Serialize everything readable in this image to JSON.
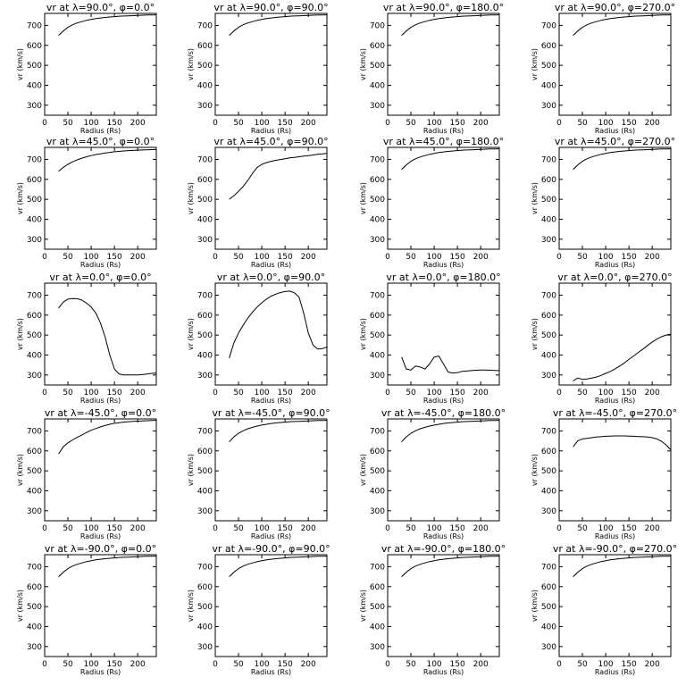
{
  "figure": {
    "x_axis_label": "Radius (Rs)",
    "y_axis_label": "vr (km/s)",
    "xlim": [
      0,
      240
    ],
    "ylim": [
      250,
      760
    ],
    "xticks": [
      0,
      50,
      100,
      150,
      200
    ],
    "yticks": [
      300,
      400,
      500,
      600,
      700
    ],
    "colors": {
      "line": "#000000",
      "background": "#ffffff"
    }
  },
  "chart_data": [
    {
      "type": "line",
      "title": "vr at λ=90.0°, φ=0.0°",
      "x": [
        30,
        40,
        50,
        60,
        70,
        80,
        90,
        100,
        110,
        120,
        130,
        140,
        150,
        160,
        170,
        180,
        190,
        200,
        210,
        220,
        230,
        240
      ],
      "y": [
        650,
        672,
        690,
        703,
        712,
        719,
        725,
        730,
        734,
        737,
        740,
        742,
        744,
        746,
        747,
        748,
        749,
        750,
        751,
        752,
        752,
        753
      ]
    },
    {
      "type": "line",
      "title": "vr at λ=90.0°, φ=90.0°",
      "x": [
        30,
        40,
        50,
        60,
        70,
        80,
        90,
        100,
        110,
        120,
        130,
        140,
        150,
        160,
        170,
        180,
        190,
        200,
        210,
        220,
        230,
        240
      ],
      "y": [
        650,
        672,
        690,
        703,
        712,
        719,
        725,
        730,
        734,
        737,
        740,
        742,
        744,
        746,
        747,
        748,
        749,
        750,
        751,
        752,
        752,
        753
      ]
    },
    {
      "type": "line",
      "title": "vr at λ=90.0°, φ=180.0°",
      "x": [
        30,
        40,
        50,
        60,
        70,
        80,
        90,
        100,
        110,
        120,
        130,
        140,
        150,
        160,
        170,
        180,
        190,
        200,
        210,
        220,
        230,
        240
      ],
      "y": [
        650,
        672,
        690,
        703,
        712,
        719,
        725,
        730,
        734,
        737,
        740,
        742,
        744,
        746,
        747,
        748,
        749,
        750,
        751,
        752,
        752,
        753
      ]
    },
    {
      "type": "line",
      "title": "vr at λ=90.0°, φ=270.0°",
      "x": [
        30,
        40,
        50,
        60,
        70,
        80,
        90,
        100,
        110,
        120,
        130,
        140,
        150,
        160,
        170,
        180,
        190,
        200,
        210,
        220,
        230,
        240
      ],
      "y": [
        650,
        672,
        690,
        703,
        712,
        719,
        725,
        730,
        734,
        737,
        740,
        742,
        744,
        746,
        747,
        748,
        749,
        750,
        751,
        752,
        752,
        753
      ]
    },
    {
      "type": "line",
      "title": "vr at λ=45.0°, φ=0.0°",
      "x": [
        30,
        40,
        50,
        60,
        70,
        80,
        90,
        100,
        110,
        120,
        130,
        140,
        150,
        160,
        170,
        180,
        190,
        200,
        210,
        220,
        230,
        240
      ],
      "y": [
        640,
        660,
        675,
        688,
        698,
        706,
        713,
        719,
        724,
        728,
        732,
        735,
        738,
        740,
        742,
        744,
        745,
        746,
        747,
        748,
        749,
        750
      ]
    },
    {
      "type": "line",
      "title": "vr at λ=45.0°, φ=90.0°",
      "x": [
        30,
        40,
        50,
        60,
        70,
        80,
        90,
        100,
        110,
        120,
        130,
        140,
        150,
        160,
        170,
        180,
        190,
        200,
        210,
        220,
        230,
        240
      ],
      "y": [
        500,
        518,
        540,
        565,
        595,
        630,
        660,
        675,
        684,
        690,
        695,
        699,
        703,
        707,
        710,
        713,
        716,
        719,
        722,
        725,
        728,
        730
      ]
    },
    {
      "type": "line",
      "title": "vr at λ=45.0°, φ=180.0°",
      "x": [
        30,
        40,
        50,
        60,
        70,
        80,
        90,
        100,
        110,
        120,
        130,
        140,
        150,
        160,
        170,
        180,
        190,
        200,
        210,
        220,
        230,
        240
      ],
      "y": [
        650,
        672,
        690,
        703,
        712,
        719,
        725,
        730,
        734,
        737,
        740,
        742,
        744,
        746,
        747,
        748,
        749,
        750,
        751,
        752,
        752,
        753
      ]
    },
    {
      "type": "line",
      "title": "vr at λ=45.0°, φ=270.0°",
      "x": [
        30,
        40,
        50,
        60,
        70,
        80,
        90,
        100,
        110,
        120,
        130,
        140,
        150,
        160,
        170,
        180,
        190,
        200,
        210,
        220,
        230,
        240
      ],
      "y": [
        650,
        672,
        690,
        703,
        712,
        719,
        725,
        730,
        734,
        737,
        740,
        742,
        744,
        746,
        747,
        748,
        749,
        750,
        751,
        752,
        752,
        753
      ]
    },
    {
      "type": "line",
      "title": "vr at λ=0.0°, φ=0.0°",
      "x": [
        30,
        40,
        50,
        60,
        70,
        80,
        90,
        100,
        110,
        120,
        130,
        140,
        150,
        160,
        170,
        180,
        190,
        200,
        210,
        220,
        230,
        240
      ],
      "y": [
        635,
        665,
        680,
        683,
        682,
        675,
        660,
        640,
        610,
        560,
        490,
        400,
        330,
        305,
        300,
        300,
        300,
        300,
        302,
        305,
        308,
        310
      ]
    },
    {
      "type": "line",
      "title": "vr at λ=0.0°, φ=90.0°",
      "x": [
        30,
        40,
        50,
        60,
        70,
        80,
        90,
        100,
        110,
        120,
        130,
        140,
        150,
        160,
        170,
        180,
        190,
        200,
        210,
        220,
        230,
        240
      ],
      "y": [
        385,
        460,
        510,
        550,
        585,
        615,
        640,
        662,
        680,
        695,
        705,
        713,
        718,
        720,
        712,
        690,
        610,
        510,
        450,
        430,
        432,
        440
      ]
    },
    {
      "type": "line",
      "title": "vr at λ=0.0°, φ=180.0°",
      "x": [
        30,
        40,
        50,
        60,
        70,
        80,
        90,
        100,
        110,
        120,
        130,
        140,
        150,
        160,
        170,
        180,
        190,
        200,
        210,
        220,
        230,
        240
      ],
      "y": [
        390,
        330,
        325,
        345,
        340,
        330,
        355,
        390,
        395,
        355,
        315,
        310,
        312,
        318,
        320,
        322,
        324,
        325,
        325,
        324,
        323,
        322
      ]
    },
    {
      "type": "line",
      "title": "vr at λ=0.0°, φ=270.0°",
      "x": [
        30,
        40,
        50,
        60,
        70,
        80,
        90,
        100,
        110,
        120,
        130,
        140,
        150,
        160,
        170,
        180,
        190,
        200,
        210,
        220,
        230,
        240
      ],
      "y": [
        270,
        285,
        278,
        280,
        285,
        290,
        298,
        308,
        318,
        330,
        345,
        360,
        378,
        395,
        413,
        430,
        448,
        465,
        480,
        492,
        500,
        505
      ]
    },
    {
      "type": "line",
      "title": "vr at λ=-45.0°, φ=0.0°",
      "x": [
        30,
        40,
        50,
        60,
        70,
        80,
        90,
        100,
        110,
        120,
        130,
        140,
        150,
        160,
        170,
        180,
        190,
        200,
        210,
        220,
        230,
        240
      ],
      "y": [
        585,
        620,
        640,
        655,
        668,
        680,
        692,
        703,
        712,
        720,
        727,
        733,
        738,
        741,
        744,
        746,
        748,
        749,
        750,
        751,
        752,
        753
      ]
    },
    {
      "type": "line",
      "title": "vr at λ=-45.0°, φ=90.0°",
      "x": [
        30,
        40,
        50,
        60,
        70,
        80,
        90,
        100,
        110,
        120,
        130,
        140,
        150,
        160,
        170,
        180,
        190,
        200,
        210,
        220,
        230,
        240
      ],
      "y": [
        645,
        670,
        688,
        701,
        711,
        718,
        724,
        729,
        733,
        737,
        740,
        742,
        744,
        746,
        747,
        748,
        749,
        750,
        751,
        752,
        752,
        753
      ]
    },
    {
      "type": "line",
      "title": "vr at λ=-45.0°, φ=180.0°",
      "x": [
        30,
        40,
        50,
        60,
        70,
        80,
        90,
        100,
        110,
        120,
        130,
        140,
        150,
        160,
        170,
        180,
        190,
        200,
        210,
        220,
        230,
        240
      ],
      "y": [
        645,
        670,
        688,
        701,
        711,
        718,
        724,
        729,
        733,
        737,
        740,
        742,
        744,
        746,
        747,
        748,
        749,
        750,
        751,
        752,
        752,
        753
      ]
    },
    {
      "type": "line",
      "title": "vr at λ=-45.0°, φ=270.0°",
      "x": [
        30,
        40,
        50,
        60,
        70,
        80,
        90,
        100,
        110,
        120,
        130,
        140,
        150,
        160,
        170,
        180,
        190,
        200,
        210,
        220,
        230,
        240
      ],
      "y": [
        620,
        650,
        660,
        663,
        666,
        669,
        671,
        673,
        674,
        675,
        675,
        675,
        674,
        673,
        672,
        671,
        669,
        666,
        660,
        648,
        630,
        605
      ]
    },
    {
      "type": "line",
      "title": "vr at λ=-90.0°, φ=0.0°",
      "x": [
        30,
        40,
        50,
        60,
        70,
        80,
        90,
        100,
        110,
        120,
        130,
        140,
        150,
        160,
        170,
        180,
        190,
        200,
        210,
        220,
        230,
        240
      ],
      "y": [
        650,
        672,
        690,
        703,
        712,
        719,
        725,
        730,
        734,
        737,
        740,
        742,
        744,
        746,
        747,
        748,
        749,
        750,
        751,
        752,
        752,
        753
      ]
    },
    {
      "type": "line",
      "title": "vr at λ=-90.0°, φ=90.0°",
      "x": [
        30,
        40,
        50,
        60,
        70,
        80,
        90,
        100,
        110,
        120,
        130,
        140,
        150,
        160,
        170,
        180,
        190,
        200,
        210,
        220,
        230,
        240
      ],
      "y": [
        650,
        672,
        690,
        703,
        712,
        719,
        725,
        730,
        734,
        737,
        740,
        742,
        744,
        746,
        747,
        748,
        749,
        750,
        751,
        752,
        752,
        753
      ]
    },
    {
      "type": "line",
      "title": "vr at λ=-90.0°, φ=180.0°",
      "x": [
        30,
        40,
        50,
        60,
        70,
        80,
        90,
        100,
        110,
        120,
        130,
        140,
        150,
        160,
        170,
        180,
        190,
        200,
        210,
        220,
        230,
        240
      ],
      "y": [
        650,
        672,
        690,
        703,
        712,
        719,
        725,
        730,
        734,
        737,
        740,
        742,
        744,
        746,
        747,
        748,
        749,
        750,
        751,
        752,
        752,
        753
      ]
    },
    {
      "type": "line",
      "title": "vr at λ=-90.0°, φ=270.0°",
      "x": [
        30,
        40,
        50,
        60,
        70,
        80,
        90,
        100,
        110,
        120,
        130,
        140,
        150,
        160,
        170,
        180,
        190,
        200,
        210,
        220,
        230,
        240
      ],
      "y": [
        650,
        672,
        690,
        703,
        712,
        719,
        725,
        730,
        734,
        737,
        740,
        742,
        744,
        746,
        747,
        748,
        749,
        750,
        751,
        752,
        752,
        753
      ]
    }
  ]
}
